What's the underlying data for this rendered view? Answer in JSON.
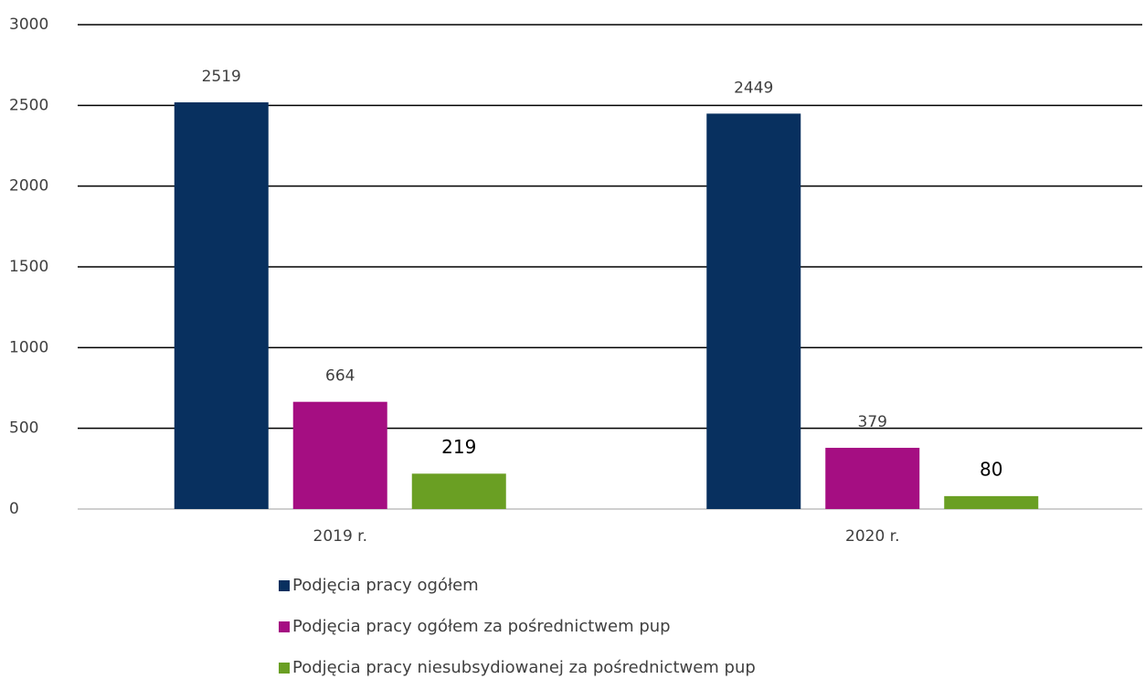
{
  "chart_data": {
    "type": "bar",
    "categories": [
      "2019 r.",
      "2020 r."
    ],
    "series": [
      {
        "name": "Podjęcia pracy ogółem",
        "color": "#08305f",
        "values": [
          2519,
          2449
        ]
      },
      {
        "name": "Podjęcia pracy ogółem za pośrednictwem pup",
        "color": "#a50e82",
        "values": [
          664,
          379
        ]
      },
      {
        "name": "Podjęcia pracy niesubsydiowanej za pośrednictwem pup",
        "color": "#6a9f23",
        "values": [
          219,
          80
        ]
      }
    ],
    "ylim": [
      0,
      3000
    ],
    "yticks": [
      0,
      500,
      1000,
      1500,
      2000,
      2500,
      3000
    ],
    "grid": true,
    "legend": "bottom"
  }
}
